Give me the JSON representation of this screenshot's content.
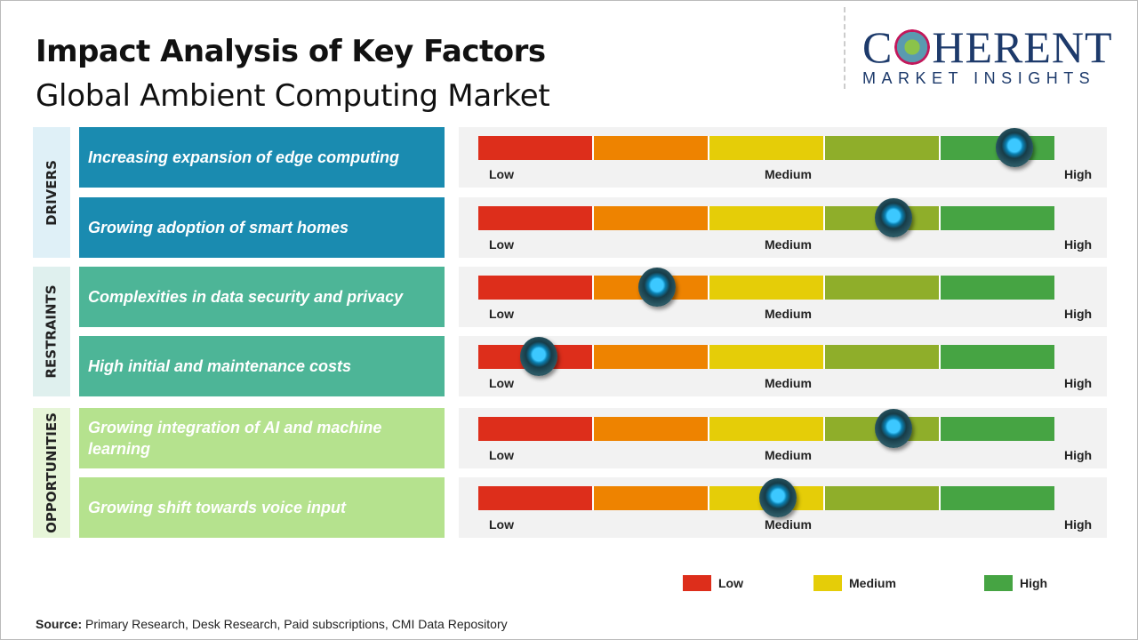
{
  "title": "Impact Analysis of Key Factors",
  "subtitle": "Global Ambient Computing Market",
  "logo": {
    "word": "COHERENT",
    "sub": "MARKET INSIGHTS"
  },
  "scale": {
    "low": "Low",
    "medium": "Medium",
    "high": "High"
  },
  "segment_colors": [
    "#dd2e1b",
    "#ee8300",
    "#e5cd08",
    "#8fae2a",
    "#46a443"
  ],
  "categories": [
    {
      "name": "DRIVERS",
      "color": "#dff0f7",
      "label_color": "#1a8bb0"
    },
    {
      "name": "RESTRAINTS",
      "color": "#dff0ee",
      "label_color": "#4db597"
    },
    {
      "name": "OPPORTUNITIES",
      "color": "#e6f5d8",
      "label_color": "#b5e28e"
    }
  ],
  "factors": [
    {
      "category": 0,
      "label": "Increasing expansion of edge computing",
      "impact": 0.93
    },
    {
      "category": 0,
      "label": "Growing adoption of smart homes",
      "impact": 0.72
    },
    {
      "category": 1,
      "label": "Complexities in data security and privacy",
      "impact": 0.31
    },
    {
      "category": 1,
      "label": "High initial and maintenance costs",
      "impact": 0.105
    },
    {
      "category": 2,
      "label": "Growing integration of AI and machine learning",
      "impact": 0.72
    },
    {
      "category": 2,
      "label": "Growing shift towards voice input",
      "impact": 0.52
    }
  ],
  "legend": [
    {
      "label": "Low",
      "color": "#dd2e1b"
    },
    {
      "label": "Medium",
      "color": "#e5cd08"
    },
    {
      "label": "High",
      "color": "#46a443"
    }
  ],
  "source": {
    "label": "Source:",
    "text": " Primary Research, Desk Research, Paid subscriptions, CMI Data Repository"
  }
}
